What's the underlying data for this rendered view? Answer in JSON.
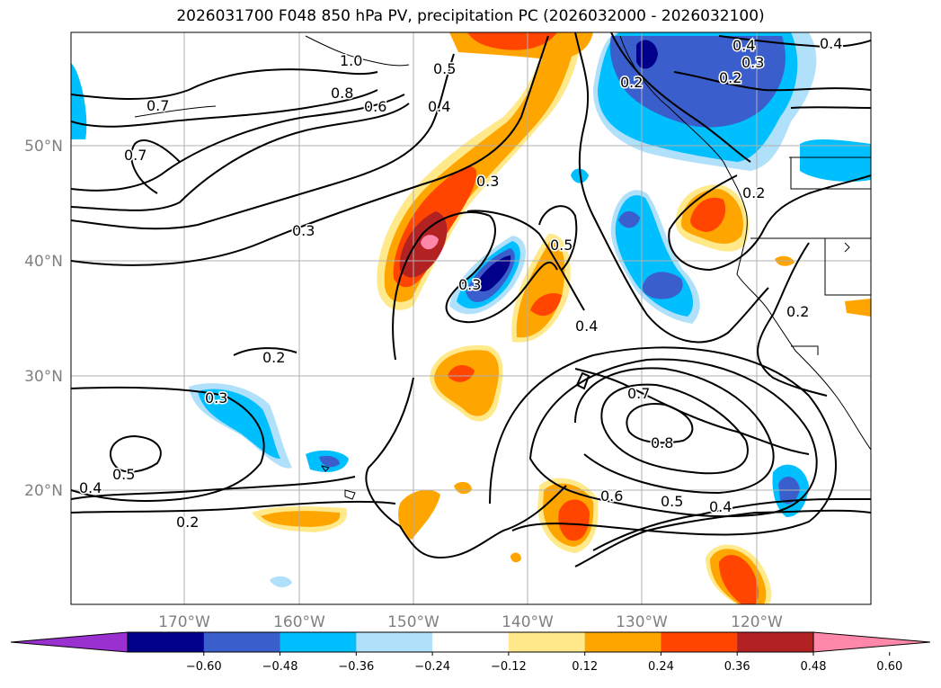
{
  "title": "2026031700 F048 850 hPa PV, precipitation PC (2026032000 - 2026032100)",
  "lon_ticks": [
    "170°W",
    "160°W",
    "150°W",
    "140°W",
    "130°W",
    "120°W"
  ],
  "lat_ticks": [
    "50°N",
    "40°N",
    "30°N",
    "20°N"
  ],
  "colorbar": {
    "ticks": [
      "−0.60",
      "−0.48",
      "−0.36",
      "−0.24",
      "−0.12",
      "0.12",
      "0.24",
      "0.36",
      "0.48",
      "0.60"
    ],
    "colors": [
      "#9b30d0",
      "#00008b",
      "#3a5fcd",
      "#00bfff",
      "#b0e0fa",
      "#ffffff",
      "#ffe98a",
      "#ffa500",
      "#ff4500",
      "#b22222",
      "#ff88aa"
    ]
  },
  "contour_labels": [
    "1.0",
    "0.8",
    "0.7",
    "0.6",
    "0.5",
    "0.4",
    "0.3",
    "0.2"
  ]
}
